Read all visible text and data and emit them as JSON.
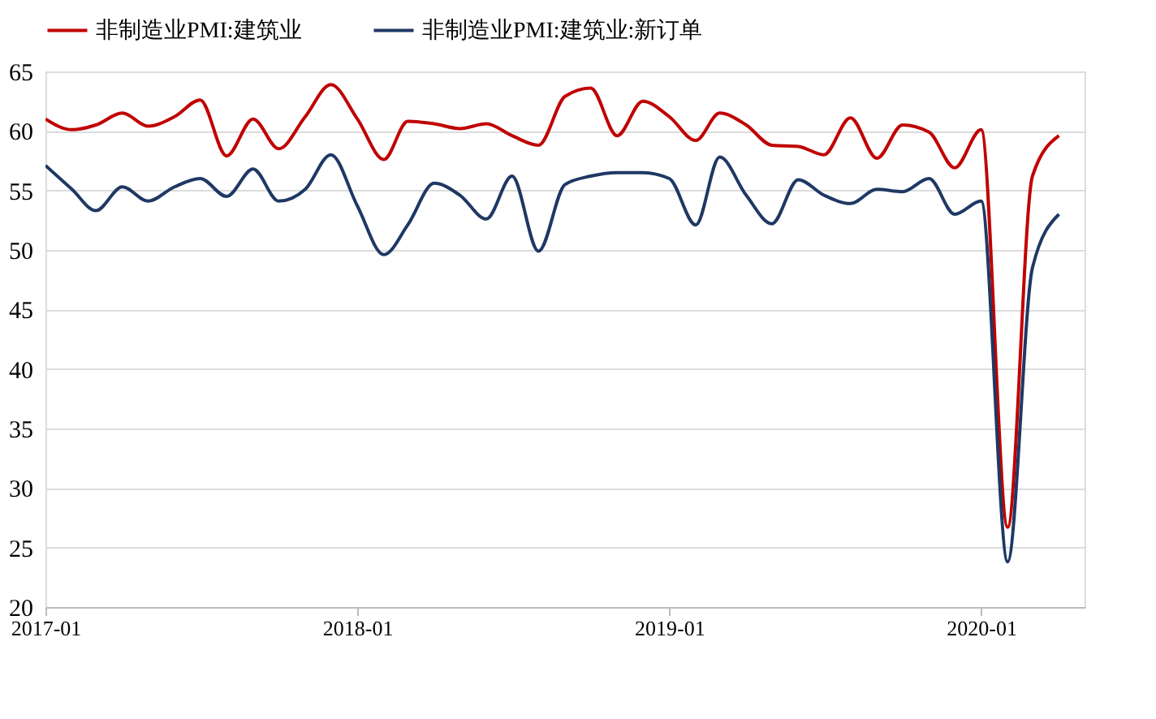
{
  "chart_data": {
    "type": "line",
    "x": [
      "2017-01",
      "2017-02",
      "2017-03",
      "2017-04",
      "2017-05",
      "2017-06",
      "2017-07",
      "2017-08",
      "2017-09",
      "2017-10",
      "2017-11",
      "2017-12",
      "2018-01",
      "2018-02",
      "2018-03",
      "2018-04",
      "2018-05",
      "2018-06",
      "2018-07",
      "2018-08",
      "2018-09",
      "2018-10",
      "2018-11",
      "2018-12",
      "2019-01",
      "2019-02",
      "2019-03",
      "2019-04",
      "2019-05",
      "2019-06",
      "2019-07",
      "2019-08",
      "2019-09",
      "2019-10",
      "2019-11",
      "2019-12",
      "2020-01",
      "2020-02",
      "2020-03",
      "2020-04"
    ],
    "series": [
      {
        "name": "非制造业PMI:建筑业",
        "color": "#c00000",
        "values": [
          61.0,
          60.1,
          60.5,
          61.5,
          60.4,
          61.2,
          62.6,
          57.9,
          61.0,
          58.5,
          61.2,
          63.9,
          61.0,
          57.6,
          60.8,
          60.6,
          60.2,
          60.6,
          59.6,
          58.8,
          62.9,
          63.6,
          59.6,
          62.5,
          61.2,
          59.2,
          61.5,
          60.5,
          58.8,
          58.7,
          58.0,
          61.1,
          57.7,
          60.5,
          59.9,
          56.9,
          60.1,
          26.7,
          56.2,
          59.6
        ]
      },
      {
        "name": "非制造业PMI:建筑业:新订单",
        "color": "#1f3864",
        "values": [
          57.1,
          55.1,
          53.3,
          55.3,
          54.1,
          55.3,
          56.0,
          54.5,
          56.8,
          54.1,
          55.1,
          58.0,
          53.7,
          49.6,
          52.1,
          55.6,
          54.6,
          52.6,
          56.2,
          49.9,
          55.5,
          56.2,
          56.5,
          56.5,
          56.0,
          52.1,
          57.8,
          54.6,
          52.2,
          55.9,
          54.6,
          53.9,
          55.1,
          54.9,
          56.0,
          53.0,
          54.1,
          23.8,
          48.5,
          53.0
        ]
      }
    ],
    "xlim": [
      "2017-01",
      "2020-05"
    ],
    "xticks": [
      "2017-01",
      "2018-01",
      "2019-01",
      "2020-01"
    ],
    "ylim": [
      20,
      65
    ],
    "yticks": [
      20,
      25,
      30,
      35,
      40,
      45,
      50,
      55,
      60,
      65
    ],
    "grid": "y",
    "legend": "top",
    "marker": "none",
    "line_style": "solid"
  }
}
